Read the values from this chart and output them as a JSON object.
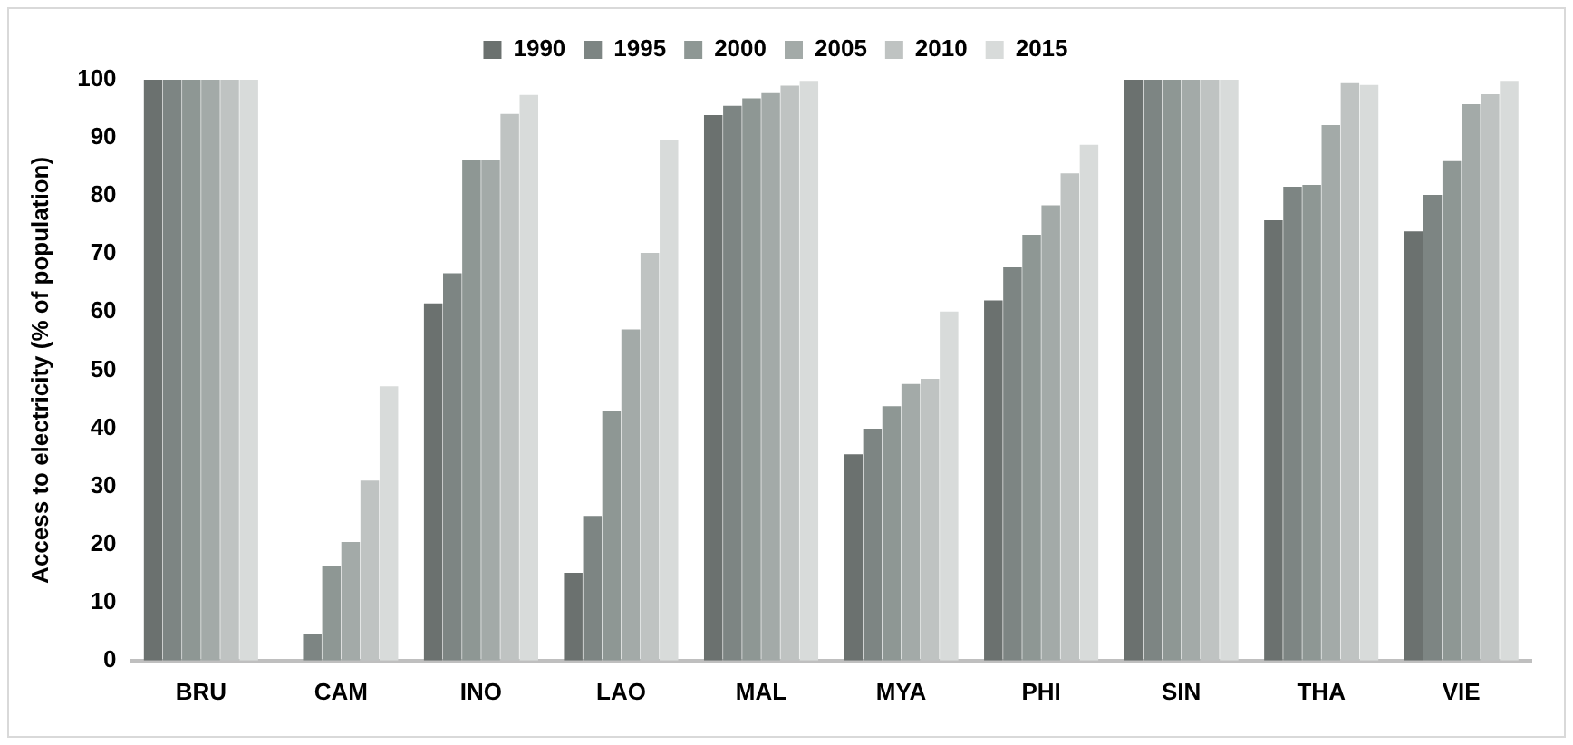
{
  "chart_data": {
    "type": "bar",
    "ylabel": "Access to electricity (% of population)",
    "categories": [
      "BRU",
      "CAM",
      "INO",
      "LAO",
      "MAL",
      "MYA",
      "PHI",
      "SIN",
      "THA",
      "VIE"
    ],
    "series": [
      {
        "name": "1990",
        "color": "#6b716f",
        "values": [
          100,
          null,
          61.5,
          15.1,
          93.9,
          35.5,
          62,
          100,
          75.8,
          73.9
        ]
      },
      {
        "name": "1995",
        "color": "#7d8583",
        "values": [
          100,
          4.5,
          66.7,
          24.9,
          95.5,
          39.9,
          67.7,
          100,
          81.6,
          80.2
        ]
      },
      {
        "name": "2000",
        "color": "#8e9794",
        "values": [
          100,
          16.3,
          86.2,
          43,
          96.8,
          43.8,
          73.3,
          100,
          81.9,
          86
        ]
      },
      {
        "name": "2005",
        "color": "#a3aaa8",
        "values": [
          100,
          20.4,
          86.2,
          57,
          97.7,
          47.6,
          78.4,
          100,
          92.2,
          95.8
        ]
      },
      {
        "name": "2010",
        "color": "#bfc3c2",
        "values": [
          100,
          31,
          94.1,
          70.2,
          99,
          48.5,
          83.9,
          100,
          99.4,
          97.5
        ]
      },
      {
        "name": "2015",
        "color": "#d8dbda",
        "values": [
          100,
          47.2,
          97.4,
          89.6,
          99.8,
          60.1,
          88.8,
          100,
          99.1,
          99.8
        ]
      }
    ],
    "ylim": [
      0,
      100
    ],
    "yticks": [
      0,
      10,
      20,
      30,
      40,
      50,
      60,
      70,
      80,
      90,
      100
    ],
    "grid": false,
    "legend": "top"
  }
}
